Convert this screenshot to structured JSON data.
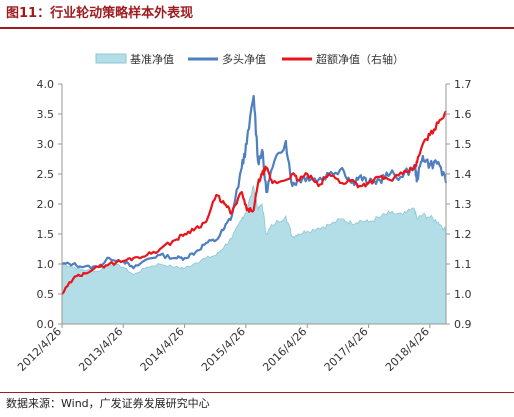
{
  "figure": {
    "title": "图11：行业轮动策略样本外表现",
    "source": "数据来源：Wind，广发证券发展研究中心"
  },
  "colors": {
    "title": "#9e1b1f",
    "benchmark_fill": "#b3dde7",
    "benchmark_stroke": "#8fc6d4",
    "long_only": "#4f7fbe",
    "excess": "#e8151c",
    "axis": "#999999",
    "text": "#333333"
  },
  "chart_data": {
    "type": "line",
    "legend": {
      "position": "top",
      "entries": [
        "基准净值",
        "多头净值",
        "超额净值（右轴）"
      ]
    },
    "x_ticks": [
      "2012/4/26",
      "2013/4/26",
      "2014/4/26",
      "2015/4/26",
      "2016/4/26",
      "2017/4/26",
      "2018/4/26"
    ],
    "x_range": [
      "2012-04-26",
      "2018-07-31"
    ],
    "y_left": {
      "ticks": [
        "0.0",
        "0.5",
        "1.0",
        "1.5",
        "2.0",
        "2.5",
        "3.0",
        "3.5",
        "4.0"
      ],
      "lim": [
        0,
        4
      ]
    },
    "y_right": {
      "ticks": [
        "0.9",
        "1.0",
        "1.1",
        "1.2",
        "1.3",
        "1.4",
        "1.5",
        "1.6",
        "1.7"
      ],
      "lim": [
        0.9,
        1.7
      ]
    },
    "grid": false,
    "series": [
      {
        "name": "基准净值",
        "type": "area",
        "axis": "left",
        "x": [
          "2012-04-26",
          "2012-07-01",
          "2012-09-01",
          "2012-12-01",
          "2013-02-01",
          "2013-04-26",
          "2013-06-25",
          "2013-09-15",
          "2013-12-01",
          "2014-03-01",
          "2014-04-26",
          "2014-07-01",
          "2014-09-01",
          "2014-11-01",
          "2014-12-20",
          "2015-02-01",
          "2015-04-01",
          "2015-05-01",
          "2015-06-12",
          "2015-07-08",
          "2015-08-01",
          "2015-08-26",
          "2015-10-01",
          "2015-12-20",
          "2016-01-28",
          "2016-03-01",
          "2016-04-26",
          "2016-07-01",
          "2016-09-01",
          "2016-11-20",
          "2017-01-15",
          "2017-03-01",
          "2017-04-26",
          "2017-07-01",
          "2017-09-01",
          "2017-11-15",
          "2018-01-24",
          "2018-02-09",
          "2018-03-15",
          "2018-04-26",
          "2018-06-15",
          "2018-07-31"
        ],
        "values": [
          1.0,
          0.95,
          0.9,
          0.88,
          1.0,
          0.95,
          0.82,
          0.95,
          1.0,
          0.95,
          0.93,
          1.02,
          1.1,
          1.15,
          1.3,
          1.42,
          1.75,
          1.9,
          2.3,
          1.9,
          2.0,
          1.5,
          1.65,
          1.8,
          1.45,
          1.5,
          1.55,
          1.6,
          1.65,
          1.75,
          1.68,
          1.72,
          1.7,
          1.78,
          1.85,
          1.82,
          1.92,
          1.75,
          1.82,
          1.78,
          1.7,
          1.55
        ]
      },
      {
        "name": "多头净值",
        "type": "line",
        "axis": "left",
        "x": [
          "2012-04-26",
          "2012-07-01",
          "2012-09-01",
          "2012-12-01",
          "2013-02-01",
          "2013-04-26",
          "2013-06-25",
          "2013-09-15",
          "2013-12-01",
          "2014-03-01",
          "2014-04-26",
          "2014-07-01",
          "2014-09-01",
          "2014-11-01",
          "2014-12-20",
          "2015-02-01",
          "2015-04-01",
          "2015-05-01",
          "2015-06-12",
          "2015-07-08",
          "2015-08-01",
          "2015-08-26",
          "2015-10-01",
          "2015-12-20",
          "2016-01-28",
          "2016-03-01",
          "2016-04-26",
          "2016-07-01",
          "2016-09-01",
          "2016-11-20",
          "2017-01-15",
          "2017-03-01",
          "2017-04-26",
          "2017-07-01",
          "2017-09-01",
          "2017-11-15",
          "2018-01-24",
          "2018-02-09",
          "2018-03-15",
          "2018-04-26",
          "2018-06-15",
          "2018-07-31"
        ],
        "values": [
          1.0,
          1.0,
          0.95,
          0.95,
          1.1,
          1.05,
          0.93,
          1.08,
          1.15,
          1.1,
          1.1,
          1.2,
          1.35,
          1.4,
          1.6,
          1.8,
          2.6,
          3.0,
          3.8,
          2.7,
          2.9,
          2.2,
          2.6,
          3.05,
          2.3,
          2.4,
          2.45,
          2.4,
          2.5,
          2.6,
          2.35,
          2.45,
          2.35,
          2.4,
          2.5,
          2.45,
          2.65,
          2.4,
          2.8,
          2.65,
          2.7,
          2.35
        ]
      },
      {
        "name": "超额净值（右轴）",
        "type": "line",
        "axis": "right",
        "x": [
          "2012-04-26",
          "2012-07-01",
          "2012-09-01",
          "2012-12-01",
          "2013-02-01",
          "2013-04-26",
          "2013-06-25",
          "2013-09-15",
          "2013-12-01",
          "2014-03-01",
          "2014-04-26",
          "2014-07-01",
          "2014-09-01",
          "2014-11-01",
          "2014-12-20",
          "2015-02-01",
          "2015-04-01",
          "2015-05-01",
          "2015-06-12",
          "2015-07-08",
          "2015-08-01",
          "2015-08-26",
          "2015-10-01",
          "2015-12-20",
          "2016-01-28",
          "2016-03-01",
          "2016-04-26",
          "2016-07-01",
          "2016-09-01",
          "2016-11-20",
          "2017-01-15",
          "2017-03-01",
          "2017-04-26",
          "2017-07-01",
          "2017-09-01",
          "2017-11-15",
          "2018-01-24",
          "2018-02-09",
          "2018-03-15",
          "2018-04-26",
          "2018-06-15",
          "2018-07-31"
        ],
        "values": [
          1.0,
          1.05,
          1.07,
          1.09,
          1.1,
          1.11,
          1.12,
          1.13,
          1.15,
          1.18,
          1.2,
          1.22,
          1.24,
          1.33,
          1.3,
          1.27,
          1.34,
          1.28,
          1.28,
          1.37,
          1.4,
          1.42,
          1.37,
          1.38,
          1.4,
          1.38,
          1.4,
          1.36,
          1.4,
          1.37,
          1.38,
          1.36,
          1.37,
          1.39,
          1.38,
          1.4,
          1.42,
          1.44,
          1.5,
          1.53,
          1.57,
          1.61
        ]
      }
    ]
  }
}
